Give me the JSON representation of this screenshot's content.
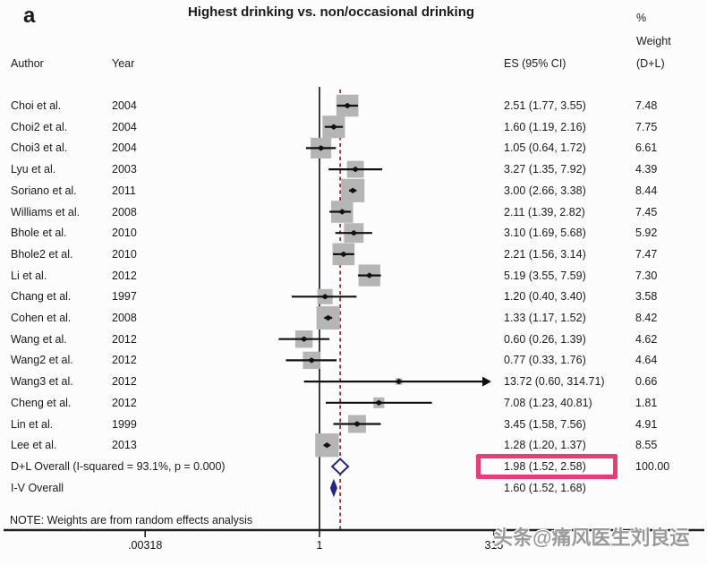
{
  "panel_label": "a",
  "title": "Highest drinking vs. non/occasional drinking",
  "header": {
    "author": "Author",
    "year": "Year",
    "es": "ES (95% CI)",
    "pct": "%",
    "weight": "Weight",
    "dl": "(D+L)"
  },
  "note": "NOTE: Weights are from random effects analysis",
  "watermark": "头条@痛风医生刘良运",
  "colors": {
    "box_gray": "#b5b5b5",
    "ci_black": "#111111",
    "axis_black": "#222222",
    "ref_line_gray": "#3d3d3d",
    "dashed_red": "#993333",
    "diamond_navy": "#22228c",
    "highlight_pink": "#ee3a78",
    "watermark_gray": "#9a9a9a"
  },
  "chart_data": {
    "type": "forest",
    "x_scale": "log10",
    "x_ticks": [
      {
        "label": ".00318",
        "value": 0.00318
      },
      {
        "label": "1",
        "value": 1
      },
      {
        "label": "315",
        "value": 315
      }
    ],
    "reference_line_value": 1,
    "dashed_line_value": 1.98,
    "studies": [
      {
        "author": "Choi et al.",
        "year": "2004",
        "es": 2.51,
        "lo": 1.77,
        "hi": 3.55,
        "es_label": "2.51 (1.77, 3.55)",
        "weight": 7.48,
        "weight_label": "7.48",
        "truncated_hi": false
      },
      {
        "author": "Choi2 et al.",
        "year": "2004",
        "es": 1.6,
        "lo": 1.19,
        "hi": 2.16,
        "es_label": "1.60 (1.19, 2.16)",
        "weight": 7.75,
        "weight_label": "7.75",
        "truncated_hi": false
      },
      {
        "author": "Choi3 et al.",
        "year": "2004",
        "es": 1.05,
        "lo": 0.64,
        "hi": 1.72,
        "es_label": "1.05 (0.64, 1.72)",
        "weight": 6.61,
        "weight_label": "6.61",
        "truncated_hi": false
      },
      {
        "author": "Lyu et al.",
        "year": "2003",
        "es": 3.27,
        "lo": 1.35,
        "hi": 7.92,
        "es_label": "3.27 (1.35, 7.92)",
        "weight": 4.39,
        "weight_label": "4.39",
        "truncated_hi": false
      },
      {
        "author": "Soriano et al.",
        "year": "2011",
        "es": 3.0,
        "lo": 2.66,
        "hi": 3.38,
        "es_label": "3.00 (2.66, 3.38)",
        "weight": 8.44,
        "weight_label": "8.44",
        "truncated_hi": false
      },
      {
        "author": "Williams et al.",
        "year": "2008",
        "es": 2.11,
        "lo": 1.39,
        "hi": 2.82,
        "es_label": "2.11 (1.39, 2.82)",
        "weight": 7.45,
        "weight_label": "7.45",
        "truncated_hi": false
      },
      {
        "author": "Bhole et al.",
        "year": "2010",
        "es": 3.1,
        "lo": 1.69,
        "hi": 5.68,
        "es_label": "3.10 (1.69, 5.68)",
        "weight": 5.92,
        "weight_label": "5.92",
        "truncated_hi": false
      },
      {
        "author": "Bhole2 et al.",
        "year": "2010",
        "es": 2.21,
        "lo": 1.56,
        "hi": 3.14,
        "es_label": "2.21 (1.56, 3.14)",
        "weight": 7.47,
        "weight_label": "7.47",
        "truncated_hi": false
      },
      {
        "author": "Li et al.",
        "year": "2012",
        "es": 5.19,
        "lo": 3.55,
        "hi": 7.59,
        "es_label": "5.19 (3.55, 7.59)",
        "weight": 7.3,
        "weight_label": "7.30",
        "truncated_hi": false
      },
      {
        "author": "Chang et al.",
        "year": "1997",
        "es": 1.2,
        "lo": 0.4,
        "hi": 3.4,
        "es_label": "1.20 (0.40, 3.40)",
        "weight": 3.58,
        "weight_label": "3.58",
        "truncated_hi": false
      },
      {
        "author": "Cohen et al.",
        "year": "2008",
        "es": 1.33,
        "lo": 1.17,
        "hi": 1.52,
        "es_label": "1.33 (1.17, 1.52)",
        "weight": 8.42,
        "weight_label": "8.42",
        "truncated_hi": false
      },
      {
        "author": "Wang et al.",
        "year": "2012",
        "es": 0.6,
        "lo": 0.26,
        "hi": 1.39,
        "es_label": "0.60 (0.26, 1.39)",
        "weight": 4.62,
        "weight_label": "4.62",
        "truncated_hi": false
      },
      {
        "author": "Wang2 et al.",
        "year": "2012",
        "es": 0.77,
        "lo": 0.33,
        "hi": 1.76,
        "es_label": "0.77 (0.33, 1.76)",
        "weight": 4.64,
        "weight_label": "4.64",
        "truncated_hi": false
      },
      {
        "author": "Wang3 et al.",
        "year": "2012",
        "es": 13.72,
        "lo": 0.6,
        "hi": 314.71,
        "es_label": "13.72 (0.60, 314.71)",
        "weight": 0.66,
        "weight_label": "0.66",
        "truncated_hi": true
      },
      {
        "author": "Cheng et al.",
        "year": "2012",
        "es": 7.08,
        "lo": 1.23,
        "hi": 40.81,
        "es_label": "7.08 (1.23, 40.81)",
        "weight": 1.81,
        "weight_label": "1.81",
        "truncated_hi": false
      },
      {
        "author": "Lin et al.",
        "year": "1999",
        "es": 3.45,
        "lo": 1.58,
        "hi": 7.56,
        "es_label": "3.45 (1.58, 7.56)",
        "weight": 4.91,
        "weight_label": "4.91",
        "truncated_hi": false
      },
      {
        "author": "Lee et al.",
        "year": "2013",
        "es": 1.28,
        "lo": 1.2,
        "hi": 1.37,
        "es_label": "1.28 (1.20, 1.37)",
        "weight": 8.55,
        "weight_label": "8.55",
        "truncated_hi": false
      }
    ],
    "overalls": [
      {
        "label": "D+L Overall  (I-squared = 93.1%, p = 0.000)",
        "es": 1.98,
        "lo": 1.52,
        "hi": 2.58,
        "es_label": "1.98 (1.52, 2.58)",
        "weight_label": "100.00",
        "style": "outline",
        "highlighted": true
      },
      {
        "label": "I-V Overall",
        "es": 1.6,
        "lo": 1.52,
        "hi": 1.68,
        "es_label": "1.60 (1.52, 1.68)",
        "weight_label": "",
        "style": "filled",
        "highlighted": false
      }
    ]
  }
}
